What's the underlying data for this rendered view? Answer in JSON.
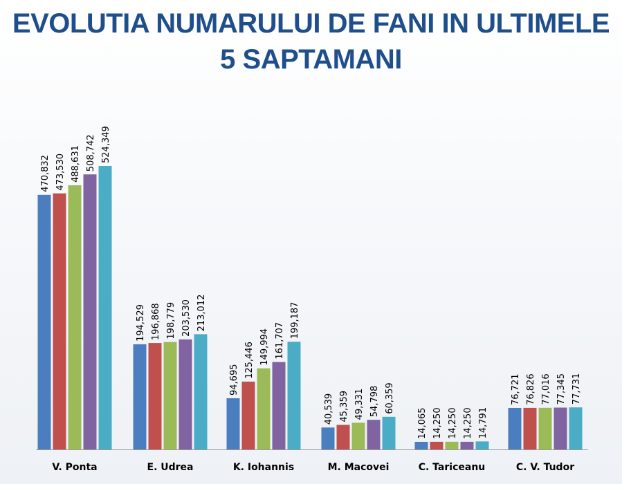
{
  "chart_data": {
    "type": "bar",
    "title_lines": [
      "EVOLUTIA NUMARULUI DE FANI IN ULTIMELE",
      "5 SAPTAMANI"
    ],
    "categories": [
      "V. Ponta",
      "E. Udrea",
      "K. Iohannis",
      "M. Macovei",
      "C. Tariceanu",
      "C. V. Tudor"
    ],
    "series": [
      {
        "values": [
          470832,
          194529,
          94695,
          40539,
          14065,
          76721
        ]
      },
      {
        "values": [
          473530,
          196868,
          125446,
          45359,
          14250,
          76826
        ]
      },
      {
        "values": [
          488631,
          198779,
          149994,
          49331,
          14250,
          77016
        ]
      },
      {
        "values": [
          508742,
          203530,
          161707,
          54798,
          14250,
          77345
        ]
      },
      {
        "values": [
          524349,
          213012,
          199187,
          60359,
          14791,
          77731
        ]
      }
    ],
    "data_labels": [
      [
        "470,832",
        "473,530",
        "488,631",
        "508,742",
        "524,349"
      ],
      [
        "194,529",
        "196,868",
        "198,779",
        "203,530",
        "213,012"
      ],
      [
        "94,695",
        "125,446",
        "149,994",
        "161,707",
        "199,187"
      ],
      [
        "40,539",
        "45,359",
        "49,331",
        "54,798",
        "60,359"
      ],
      [
        "14,065",
        "14,250",
        "14,250",
        "14,250",
        "14,791"
      ],
      [
        "76,721",
        "76,826",
        "77,016",
        "77,345",
        "77,731"
      ]
    ],
    "series_colors": [
      "#4a7ebf",
      "#c0504d",
      "#9bbb59",
      "#8064a2",
      "#4bacc6"
    ],
    "ylim": [
      0,
      600000
    ],
    "grid": false,
    "legend": "none",
    "xlabel": "",
    "ylabel": ""
  }
}
